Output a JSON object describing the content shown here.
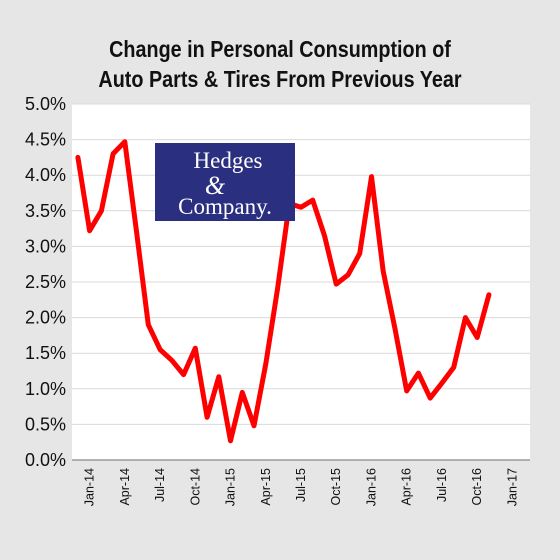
{
  "chart_data": {
    "type": "line",
    "title_lines": [
      "Change in Personal Consumption of",
      "Auto Parts & Tires From Previous Year"
    ],
    "xlabel": "",
    "ylabel": "",
    "y_tick_labels": [
      "0.0%",
      "0.5%",
      "1.0%",
      "1.5%",
      "2.0%",
      "2.5%",
      "3.0%",
      "3.5%",
      "4.0%",
      "4.5%",
      "5.0%"
    ],
    "ylim": [
      0,
      5
    ],
    "x_tick_labels": [
      "Jan-14",
      "Apr-14",
      "Jul-14",
      "Oct-14",
      "Jan-15",
      "Apr-15",
      "Jul-15",
      "Oct-15",
      "Jan-16",
      "Apr-16",
      "Jul-16",
      "Oct-16",
      "Jan-17"
    ],
    "x": [
      "Jan-14",
      "Feb-14",
      "Mar-14",
      "Apr-14",
      "May-14",
      "Jun-14",
      "Jul-14",
      "Aug-14",
      "Sep-14",
      "Oct-14",
      "Nov-14",
      "Dec-14",
      "Jan-15",
      "Feb-15",
      "Mar-15",
      "Apr-15",
      "May-15",
      "Jun-15",
      "Jul-15",
      "Aug-15",
      "Sep-15",
      "Oct-15",
      "Nov-15",
      "Dec-15",
      "Jan-16",
      "Feb-16",
      "Mar-16",
      "Apr-16",
      "May-16",
      "Jun-16",
      "Jul-16",
      "Aug-16",
      "Sep-16",
      "Oct-16",
      "Nov-16",
      "Dec-16"
    ],
    "series": [
      {
        "values": [
          4.25,
          3.22,
          3.5,
          4.3,
          4.47,
          3.2,
          1.9,
          1.55,
          1.4,
          1.2,
          1.57,
          0.6,
          1.17,
          0.27,
          0.95,
          0.48,
          1.35,
          2.4,
          3.6,
          3.55,
          3.65,
          3.15,
          2.47,
          2.6,
          2.9,
          3.98,
          2.65,
          1.85,
          0.97,
          1.22,
          0.87,
          1.08,
          1.3,
          2.0,
          1.72,
          2.32
        ],
        "color": "#ff0000"
      }
    ],
    "grid": "horizontal",
    "legend": "none"
  },
  "logo": {
    "line1": "Hedges",
    "ampersand": "&",
    "line2": "Company.",
    "background": "#2b2f80",
    "text_color": "#ffffff"
  },
  "colors": {
    "background": "#e6e6e6",
    "plot_background": "#ffffff",
    "gridline": "#d9d9d9",
    "series": "#ff0000"
  }
}
